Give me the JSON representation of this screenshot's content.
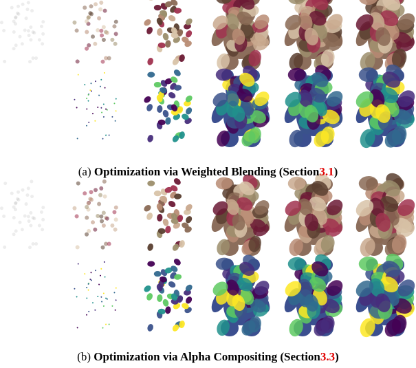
{
  "figure": {
    "panels": [
      {
        "label": "(a)",
        "title": "Optimization via Weighted Blending (Section",
        "ref": "3.1",
        "close": ")"
      },
      {
        "label": "(b)",
        "title": "Optimization via Alpha Compositing (Section",
        "ref": "3.3",
        "close": ")"
      }
    ]
  }
}
